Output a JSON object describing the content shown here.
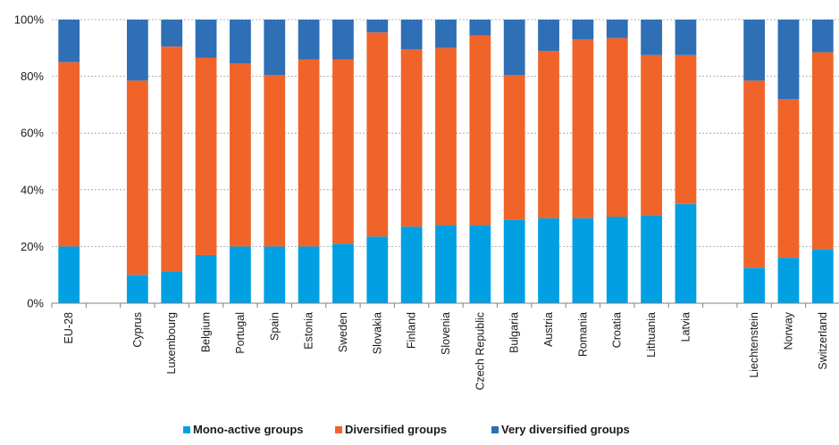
{
  "chart_data": {
    "type": "bar",
    "stacked": true,
    "categories": [
      "EU-28",
      "",
      "Cyprus",
      "Luxembourg",
      "Belgium",
      "Portugal",
      "Spain",
      "Estonia",
      "Sweden",
      "Slovakia",
      "Finland",
      "Slovenia",
      "Czech Republic",
      "Bulgaria",
      "Austria",
      "Romania",
      "Croatia",
      "Lithuania",
      "Latvia",
      "",
      "Liechtenstein",
      "Norway",
      "Switzerland"
    ],
    "series": [
      {
        "name": "Mono-active groups",
        "color": "#00a0e3",
        "values": [
          20,
          null,
          10,
          11,
          17,
          20,
          20,
          20,
          21,
          23.5,
          27,
          27.5,
          27.5,
          29.5,
          30,
          30,
          30.5,
          31,
          35,
          null,
          12.5,
          16,
          19
        ]
      },
      {
        "name": "Diversified groups",
        "color": "#f0642a",
        "values": [
          65,
          null,
          68.5,
          79.5,
          69.5,
          64.5,
          60.5,
          66,
          65,
          72,
          62.5,
          62.5,
          67,
          51,
          59,
          63,
          63,
          56.5,
          52.5,
          null,
          66,
          56,
          69.5
        ]
      },
      {
        "name": "Very diversified groups",
        "color": "#2e6fb5",
        "values": [
          15,
          null,
          21.5,
          9.5,
          13.5,
          15.5,
          19.5,
          14,
          14,
          4.5,
          10.5,
          10,
          5.5,
          19.5,
          11,
          7,
          6.5,
          12.5,
          12.5,
          null,
          21.5,
          28,
          11.5
        ]
      }
    ],
    "yticks": [
      "0%",
      "20%",
      "40%",
      "60%",
      "80%",
      "100%"
    ],
    "ylim": [
      0,
      100
    ],
    "grid": true,
    "legend_position": "bottom"
  }
}
